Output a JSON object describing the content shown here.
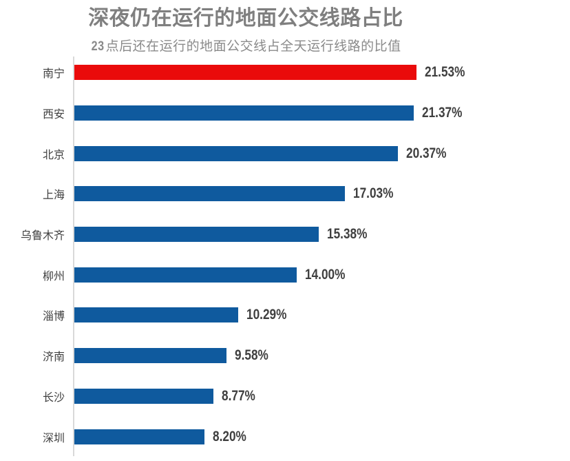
{
  "chart_data": {
    "type": "bar",
    "orientation": "horizontal",
    "title": "深夜仍在运行的地面公交线路占比",
    "subtitle_prefix": "23",
    "subtitle_rest": "点后还在运行的地面公交线占全天运行线路的比值",
    "categories": [
      "南宁",
      "西安",
      "北京",
      "上海",
      "乌鲁木齐",
      "柳州",
      "淄博",
      "济南",
      "长沙",
      "深圳"
    ],
    "values": [
      21.53,
      21.37,
      20.37,
      17.03,
      15.38,
      14.0,
      10.29,
      9.58,
      8.77,
      8.2
    ],
    "value_labels": [
      "21.53%",
      "21.37%",
      "20.37%",
      "17.03%",
      "15.38%",
      "14.00%",
      "10.29%",
      "9.58%",
      "8.77%",
      "8.20%"
    ],
    "highlight_index": 0,
    "xlim": [
      0,
      21.53
    ],
    "grid": "off",
    "legend": "none",
    "colors": {
      "highlight_bar": "#ea0b0b",
      "default_bar": "#0f5a9e",
      "title_text": "#7f7f7f",
      "subtitle_text": "#8a8a8a",
      "category_text": "#404040",
      "value_text": "#3f3f3f",
      "axis_line": "#d9d9d9",
      "background": "#ffffff"
    }
  }
}
